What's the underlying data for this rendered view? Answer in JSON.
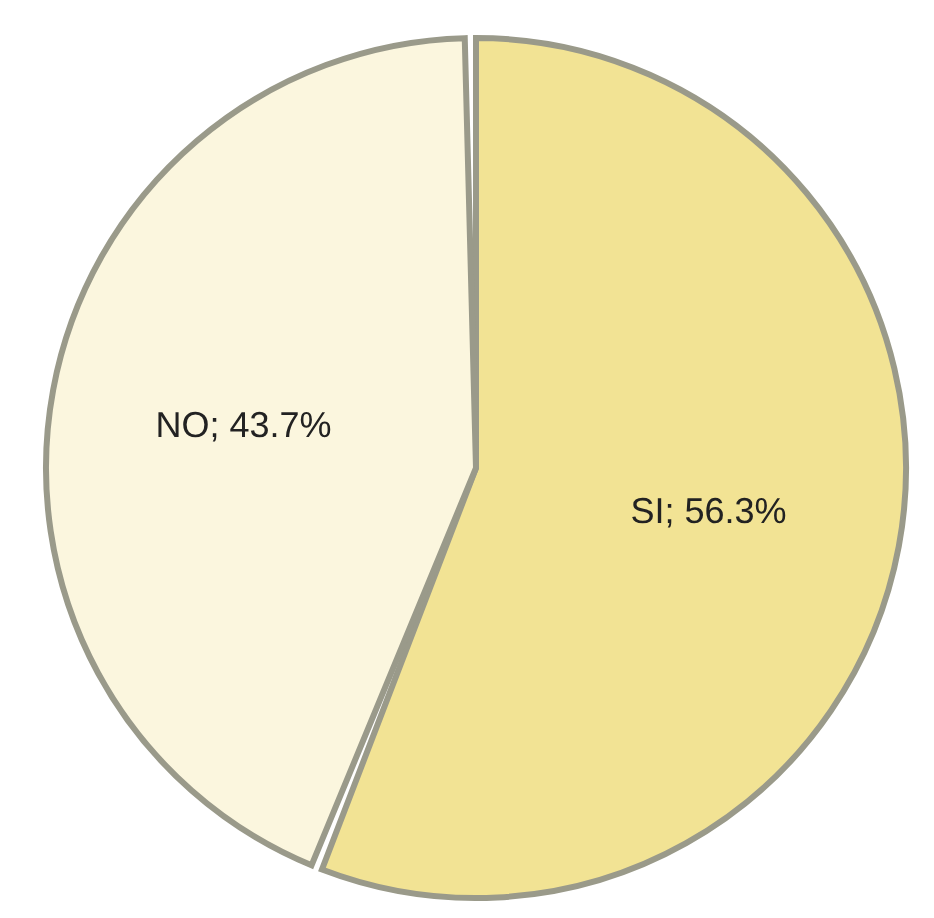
{
  "chart_data": {
    "type": "pie",
    "categories": [
      "SI",
      "NO"
    ],
    "values": [
      56.3,
      43.7
    ],
    "colors": [
      "#f2e394",
      "#fbf6de"
    ],
    "value_labels": [
      "56.3%",
      "43.7%"
    ],
    "legend": false
  }
}
